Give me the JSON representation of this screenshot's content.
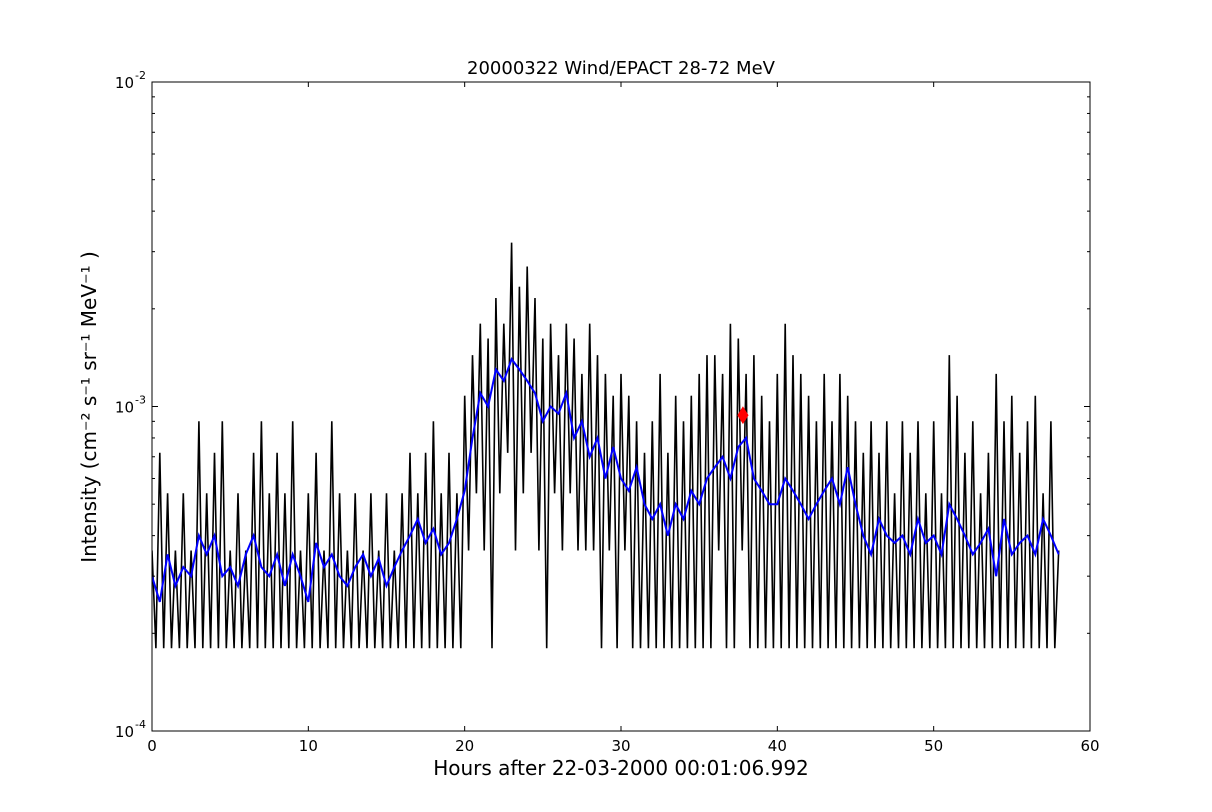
{
  "chart_data": {
    "type": "line",
    "title": "20000322 Wind/EPACT 28-72 MeV",
    "xlabel": "Hours after 22-03-2000 00:01:06.992",
    "ylabel": "Intensity (cm⁻² s⁻¹ sr⁻¹ MeV⁻¹ )",
    "xlim": [
      0,
      60
    ],
    "ylim": [
      0.0001,
      0.01
    ],
    "yscale": "log",
    "grid": false,
    "xticks": [
      "0",
      "10",
      "20",
      "30",
      "40",
      "50",
      "60"
    ],
    "yticks": [
      {
        "base": "10",
        "exp": "-4"
      },
      {
        "base": "10",
        "exp": "-3"
      },
      {
        "base": "10",
        "exp": "-2"
      }
    ],
    "series": [
      {
        "color": "#000000",
        "x_start": 0,
        "x_step": 0.25,
        "values": [
          0.00036,
          0.00018,
          0.00072,
          0.00018,
          0.00054,
          0.00018,
          0.00036,
          0.00018,
          0.00054,
          0.00018,
          0.00036,
          0.00018,
          0.0009,
          0.00018,
          0.00054,
          0.00018,
          0.00072,
          0.00018,
          0.0009,
          0.00018,
          0.00036,
          0.00018,
          0.00054,
          0.00018,
          0.00036,
          0.00018,
          0.00072,
          0.00018,
          0.0009,
          0.00018,
          0.00054,
          0.00018,
          0.00072,
          0.00018,
          0.00054,
          0.00018,
          0.0009,
          0.00018,
          0.00036,
          0.00018,
          0.00054,
          0.00018,
          0.00072,
          0.00018,
          0.00036,
          0.00018,
          0.0009,
          0.00018,
          0.00054,
          0.00018,
          0.00036,
          0.00018,
          0.00054,
          0.00018,
          0.00036,
          0.00018,
          0.00054,
          0.00018,
          0.00036,
          0.00018,
          0.00054,
          0.00018,
          0.00036,
          0.00018,
          0.00054,
          0.00018,
          0.00072,
          0.00018,
          0.00054,
          0.00018,
          0.00072,
          0.00018,
          0.0009,
          0.00018,
          0.00054,
          0.00018,
          0.00072,
          0.00018,
          0.00054,
          0.00018,
          0.00108,
          0.00036,
          0.00144,
          0.00054,
          0.0018,
          0.00036,
          0.00162,
          0.00018,
          0.00216,
          0.00054,
          0.0018,
          0.00072,
          0.0032,
          0.00036,
          0.00234,
          0.00054,
          0.0027,
          0.00072,
          0.00216,
          0.00036,
          0.00162,
          0.00018,
          0.0018,
          0.00054,
          0.00144,
          0.00036,
          0.0018,
          0.00054,
          0.00162,
          0.00036,
          0.00126,
          0.00036,
          0.0018,
          0.00036,
          0.00144,
          0.00018,
          0.00126,
          0.00036,
          0.00108,
          0.00018,
          0.00126,
          0.00036,
          0.00108,
          0.00018,
          0.0009,
          0.00018,
          0.00072,
          0.00018,
          0.0009,
          0.00018,
          0.00126,
          0.00018,
          0.00072,
          0.00018,
          0.00108,
          0.00018,
          0.0009,
          0.00018,
          0.00108,
          0.00018,
          0.00126,
          0.00018,
          0.00144,
          0.00018,
          0.00144,
          0.00036,
          0.00126,
          0.00018,
          0.0018,
          0.00018,
          0.00162,
          0.00036,
          0.00126,
          0.00018,
          0.00144,
          0.00018,
          0.00108,
          0.00018,
          0.0009,
          0.00018,
          0.00126,
          0.00018,
          0.0018,
          0.00018,
          0.00144,
          0.00018,
          0.00126,
          0.00018,
          0.00108,
          0.00018,
          0.0009,
          0.00018,
          0.00126,
          0.00018,
          0.0009,
          0.00018,
          0.00126,
          0.00018,
          0.00108,
          0.00018,
          0.0009,
          0.00018,
          0.00072,
          0.00018,
          0.0009,
          0.00018,
          0.00072,
          0.00018,
          0.0009,
          0.00018,
          0.00054,
          0.00018,
          0.0009,
          0.00018,
          0.00072,
          0.00018,
          0.0009,
          0.00018,
          0.00054,
          0.00018,
          0.0009,
          0.00018,
          0.00054,
          0.00018,
          0.00144,
          0.00018,
          0.00108,
          0.00018,
          0.00072,
          0.00018,
          0.0009,
          0.00018,
          0.00054,
          0.00018,
          0.00072,
          0.00018,
          0.00126,
          0.00018,
          0.0009,
          0.00018,
          0.00108,
          0.00018,
          0.00072,
          0.00018,
          0.0009,
          0.00018,
          0.00108,
          0.00018,
          0.00054,
          0.00018,
          0.0009,
          0.00018,
          0.00036
        ]
      },
      {
        "color": "#0000ff",
        "x_start": 0,
        "x_step": 0.5,
        "values": [
          0.0003,
          0.00025,
          0.00035,
          0.00028,
          0.00032,
          0.0003,
          0.0004,
          0.00035,
          0.0004,
          0.0003,
          0.00032,
          0.00028,
          0.00035,
          0.0004,
          0.00032,
          0.0003,
          0.00035,
          0.00028,
          0.00035,
          0.0003,
          0.00025,
          0.00038,
          0.00032,
          0.00035,
          0.0003,
          0.00028,
          0.00032,
          0.00035,
          0.0003,
          0.00034,
          0.00028,
          0.00032,
          0.00036,
          0.0004,
          0.00045,
          0.00038,
          0.00042,
          0.00035,
          0.00038,
          0.00045,
          0.00055,
          0.0008,
          0.0011,
          0.001,
          0.0013,
          0.0012,
          0.0014,
          0.0013,
          0.0012,
          0.0011,
          0.0009,
          0.001,
          0.00095,
          0.0011,
          0.0008,
          0.0009,
          0.0007,
          0.0008,
          0.0006,
          0.00075,
          0.0006,
          0.00055,
          0.00065,
          0.0005,
          0.00045,
          0.0005,
          0.0004,
          0.0005,
          0.00045,
          0.00055,
          0.0005,
          0.0006,
          0.00065,
          0.0007,
          0.0006,
          0.00075,
          0.0008,
          0.0006,
          0.00055,
          0.0005,
          0.0005,
          0.0006,
          0.00055,
          0.0005,
          0.00045,
          0.0005,
          0.00055,
          0.0006,
          0.0005,
          0.00065,
          0.0005,
          0.0004,
          0.00035,
          0.00045,
          0.0004,
          0.00038,
          0.0004,
          0.00035,
          0.00045,
          0.00038,
          0.0004,
          0.00035,
          0.0005,
          0.00045,
          0.0004,
          0.00035,
          0.00038,
          0.00042,
          0.0003,
          0.00045,
          0.00035,
          0.00038,
          0.0004,
          0.00035,
          0.00045,
          0.0004,
          0.00035
        ]
      }
    ],
    "markers": [
      {
        "x": 37.8,
        "y": 0.00094,
        "color": "#ff0000",
        "shape": "diamond"
      }
    ]
  }
}
